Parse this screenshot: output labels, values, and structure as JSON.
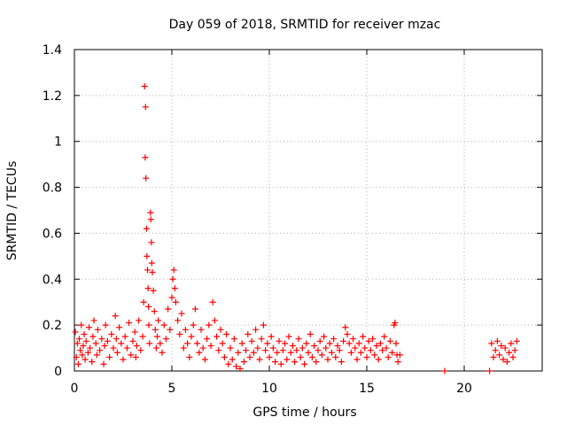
{
  "chart_data": {
    "type": "scatter",
    "title": "Day 059 of 2018, SRMTID for receiver mzac",
    "xlabel": "GPS time / hours",
    "ylabel": "SRMTID / TECUs",
    "xlim": [
      0,
      24
    ],
    "ylim": [
      0,
      1.4
    ],
    "xticks": [
      0,
      5,
      10,
      15,
      20
    ],
    "yticks": [
      0,
      0.2,
      0.4,
      0.6,
      0.8,
      1,
      1.2,
      1.4
    ],
    "ytick_labels": [
      "0",
      "0.2",
      "0.4",
      "0.6",
      "0.8",
      "1",
      "1.2",
      "1.4"
    ],
    "grid": true,
    "marker": "+",
    "series_color": "#ff0000",
    "series": [
      {
        "name": "SRMTID",
        "points": [
          [
            0.05,
            0.17
          ],
          [
            0.1,
            0.06
          ],
          [
            0.15,
            0.12
          ],
          [
            0.2,
            0.03
          ],
          [
            0.25,
            0.14
          ],
          [
            0.3,
            0.09
          ],
          [
            0.35,
            0.2
          ],
          [
            0.4,
            0.07
          ],
          [
            0.45,
            0.11
          ],
          [
            0.5,
            0.16
          ],
          [
            0.55,
            0.05
          ],
          [
            0.6,
            0.13
          ],
          [
            0.7,
            0.08
          ],
          [
            0.75,
            0.19
          ],
          [
            0.8,
            0.1
          ],
          [
            0.9,
            0.04
          ],
          [
            0.95,
            0.15
          ],
          [
            1.0,
            0.22
          ],
          [
            1.1,
            0.12
          ],
          [
            1.15,
            0.07
          ],
          [
            1.2,
            0.18
          ],
          [
            1.3,
            0.09
          ],
          [
            1.4,
            0.14
          ],
          [
            1.5,
            0.03
          ],
          [
            1.55,
            0.11
          ],
          [
            1.6,
            0.2
          ],
          [
            1.7,
            0.13
          ],
          [
            1.8,
            0.06
          ],
          [
            1.9,
            0.16
          ],
          [
            2.0,
            0.1
          ],
          [
            2.1,
            0.24
          ],
          [
            2.15,
            0.14
          ],
          [
            2.2,
            0.08
          ],
          [
            2.3,
            0.19
          ],
          [
            2.4,
            0.12
          ],
          [
            2.5,
            0.05
          ],
          [
            2.6,
            0.15
          ],
          [
            2.7,
            0.1
          ],
          [
            2.8,
            0.21
          ],
          [
            2.9,
            0.07
          ],
          [
            3.0,
            0.13
          ],
          [
            3.1,
            0.17
          ],
          [
            3.15,
            0.06
          ],
          [
            3.2,
            0.11
          ],
          [
            3.3,
            0.22
          ],
          [
            3.4,
            0.09
          ],
          [
            3.5,
            0.15
          ],
          [
            3.55,
            0.3
          ],
          [
            3.6,
            1.24
          ],
          [
            3.65,
            1.15
          ],
          [
            3.63,
            0.93
          ],
          [
            3.67,
            0.84
          ],
          [
            3.7,
            0.62
          ],
          [
            3.72,
            0.5
          ],
          [
            3.75,
            0.44
          ],
          [
            3.78,
            0.36
          ],
          [
            3.8,
            0.28
          ],
          [
            3.82,
            0.2
          ],
          [
            3.85,
            0.12
          ],
          [
            3.9,
            0.69
          ],
          [
            3.92,
            0.66
          ],
          [
            3.95,
            0.56
          ],
          [
            3.97,
            0.47
          ],
          [
            4.0,
            0.43
          ],
          [
            4.05,
            0.35
          ],
          [
            4.1,
            0.26
          ],
          [
            4.15,
            0.18
          ],
          [
            4.2,
            0.1
          ],
          [
            4.25,
            0.15
          ],
          [
            4.3,
            0.22
          ],
          [
            4.4,
            0.12
          ],
          [
            4.5,
            0.08
          ],
          [
            4.6,
            0.2
          ],
          [
            4.7,
            0.14
          ],
          [
            4.8,
            0.27
          ],
          [
            4.9,
            0.18
          ],
          [
            5.0,
            0.32
          ],
          [
            5.05,
            0.4
          ],
          [
            5.1,
            0.44
          ],
          [
            5.15,
            0.36
          ],
          [
            5.2,
            0.3
          ],
          [
            5.3,
            0.22
          ],
          [
            5.4,
            0.16
          ],
          [
            5.5,
            0.25
          ],
          [
            5.6,
            0.1
          ],
          [
            5.7,
            0.18
          ],
          [
            5.8,
            0.12
          ],
          [
            5.9,
            0.06
          ],
          [
            6.0,
            0.15
          ],
          [
            6.1,
            0.2
          ],
          [
            6.2,
            0.27
          ],
          [
            6.3,
            0.12
          ],
          [
            6.4,
            0.08
          ],
          [
            6.5,
            0.18
          ],
          [
            6.6,
            0.1
          ],
          [
            6.7,
            0.05
          ],
          [
            6.8,
            0.14
          ],
          [
            6.9,
            0.2
          ],
          [
            7.0,
            0.11
          ],
          [
            7.1,
            0.3
          ],
          [
            7.2,
            0.22
          ],
          [
            7.3,
            0.15
          ],
          [
            7.4,
            0.09
          ],
          [
            7.5,
            0.18
          ],
          [
            7.6,
            0.12
          ],
          [
            7.7,
            0.06
          ],
          [
            7.8,
            0.16
          ],
          [
            7.9,
            0.03
          ],
          [
            8.0,
            0.1
          ],
          [
            8.1,
            0.05
          ],
          [
            8.2,
            0.14
          ],
          [
            8.3,
            0.02
          ],
          [
            8.4,
            0.08
          ],
          [
            8.5,
            0.01
          ],
          [
            8.6,
            0.12
          ],
          [
            8.7,
            0.04
          ],
          [
            8.8,
            0.09
          ],
          [
            8.9,
            0.16
          ],
          [
            9.0,
            0.06
          ],
          [
            9.1,
            0.13
          ],
          [
            9.2,
            0.08
          ],
          [
            9.3,
            0.18
          ],
          [
            9.4,
            0.1
          ],
          [
            9.5,
            0.05
          ],
          [
            9.6,
            0.14
          ],
          [
            9.7,
            0.2
          ],
          [
            9.8,
            0.09
          ],
          [
            9.9,
            0.12
          ],
          [
            10.0,
            0.06
          ],
          [
            10.1,
            0.15
          ],
          [
            10.2,
            0.1
          ],
          [
            10.3,
            0.04
          ],
          [
            10.4,
            0.08
          ],
          [
            10.5,
            0.13
          ],
          [
            10.6,
            0.03
          ],
          [
            10.7,
            0.09
          ],
          [
            10.8,
            0.12
          ],
          [
            10.9,
            0.05
          ],
          [
            11.0,
            0.15
          ],
          [
            11.1,
            0.08
          ],
          [
            11.2,
            0.11
          ],
          [
            11.3,
            0.04
          ],
          [
            11.4,
            0.09
          ],
          [
            11.5,
            0.14
          ],
          [
            11.6,
            0.06
          ],
          [
            11.7,
            0.1
          ],
          [
            11.8,
            0.03
          ],
          [
            11.9,
            0.12
          ],
          [
            12.0,
            0.08
          ],
          [
            12.1,
            0.16
          ],
          [
            12.2,
            0.06
          ],
          [
            12.3,
            0.11
          ],
          [
            12.4,
            0.04
          ],
          [
            12.5,
            0.09
          ],
          [
            12.6,
            0.13
          ],
          [
            12.7,
            0.07
          ],
          [
            12.8,
            0.15
          ],
          [
            12.9,
            0.1
          ],
          [
            13.0,
            0.05
          ],
          [
            13.1,
            0.12
          ],
          [
            13.2,
            0.08
          ],
          [
            13.3,
            0.14
          ],
          [
            13.4,
            0.06
          ],
          [
            13.5,
            0.11
          ],
          [
            13.6,
            0.09
          ],
          [
            13.7,
            0.04
          ],
          [
            13.8,
            0.13
          ],
          [
            13.9,
            0.19
          ],
          [
            14.0,
            0.16
          ],
          [
            14.1,
            0.12
          ],
          [
            14.2,
            0.08
          ],
          [
            14.3,
            0.14
          ],
          [
            14.4,
            0.1
          ],
          [
            14.5,
            0.05
          ],
          [
            14.6,
            0.12
          ],
          [
            14.7,
            0.08
          ],
          [
            14.8,
            0.15
          ],
          [
            14.9,
            0.1
          ],
          [
            15.0,
            0.06
          ],
          [
            15.1,
            0.13
          ],
          [
            15.2,
            0.09
          ],
          [
            15.3,
            0.14
          ],
          [
            15.4,
            0.07
          ],
          [
            15.5,
            0.11
          ],
          [
            15.6,
            0.05
          ],
          [
            15.7,
            0.12
          ],
          [
            15.8,
            0.09
          ],
          [
            15.9,
            0.15
          ],
          [
            16.0,
            0.1
          ],
          [
            16.1,
            0.06
          ],
          [
            16.2,
            0.13
          ],
          [
            16.3,
            0.08
          ],
          [
            16.4,
            0.2
          ],
          [
            16.45,
            0.21
          ],
          [
            16.5,
            0.12
          ],
          [
            16.55,
            0.07
          ],
          [
            16.6,
            0.04
          ],
          [
            16.7,
            0.07
          ],
          [
            19.0,
            0.0
          ],
          [
            21.3,
            0.0
          ],
          [
            21.4,
            0.12
          ],
          [
            21.5,
            0.06
          ],
          [
            21.6,
            0.09
          ],
          [
            21.7,
            0.13
          ],
          [
            21.8,
            0.07
          ],
          [
            21.9,
            0.11
          ],
          [
            22.0,
            0.05
          ],
          [
            22.1,
            0.1
          ],
          [
            22.2,
            0.04
          ],
          [
            22.3,
            0.08
          ],
          [
            22.4,
            0.12
          ],
          [
            22.5,
            0.06
          ],
          [
            22.6,
            0.09
          ],
          [
            22.7,
            0.13
          ]
        ]
      }
    ]
  }
}
